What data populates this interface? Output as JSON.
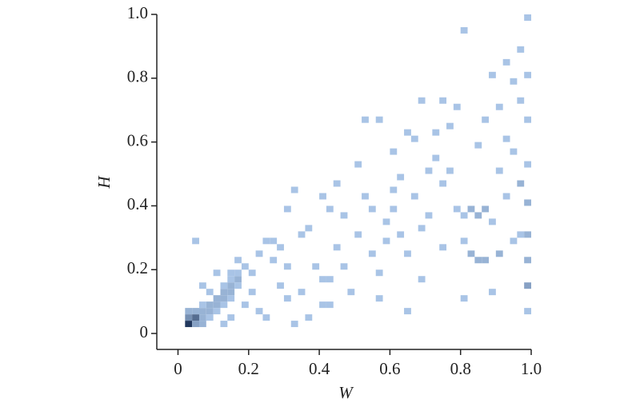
{
  "chart_data": {
    "type": "heatmap2d",
    "xlabel": "W",
    "ylabel": "H",
    "xlim": [
      -0.06,
      1.0
    ],
    "ylim": [
      -0.05,
      1.0
    ],
    "xticks": [
      0,
      0.2,
      0.4,
      0.6,
      0.8,
      {
        "value": 1,
        "label": "1.0"
      }
    ],
    "yticks": [
      0,
      0.2,
      0.4,
      0.6,
      0.8,
      {
        "value": 1,
        "label": "1.0"
      }
    ],
    "binsize": [
      0.02,
      0.02
    ],
    "cmap": [
      "#a9c4e6",
      "#22385e"
    ],
    "cells": [
      [
        0.02,
        0.02,
        9
      ],
      [
        0.04,
        0.02,
        3
      ],
      [
        0.02,
        0.04,
        4
      ],
      [
        0.04,
        0.04,
        6
      ],
      [
        0.06,
        0.02,
        2
      ],
      [
        0.02,
        0.06,
        2
      ],
      [
        0.06,
        0.04,
        2
      ],
      [
        0.04,
        0.06,
        2
      ],
      [
        0.06,
        0.06,
        2
      ],
      [
        0.08,
        0.04,
        1
      ],
      [
        0.08,
        0.06,
        2
      ],
      [
        0.06,
        0.08,
        1
      ],
      [
        0.08,
        0.08,
        2
      ],
      [
        0.1,
        0.08,
        2
      ],
      [
        0.1,
        0.06,
        1
      ],
      [
        0.12,
        0.08,
        1
      ],
      [
        0.1,
        0.1,
        2
      ],
      [
        0.12,
        0.1,
        2
      ],
      [
        0.14,
        0.1,
        1
      ],
      [
        0.12,
        0.12,
        2
      ],
      [
        0.14,
        0.12,
        2
      ],
      [
        0.12,
        0.14,
        1
      ],
      [
        0.14,
        0.14,
        2
      ],
      [
        0.16,
        0.14,
        1
      ],
      [
        0.14,
        0.16,
        1
      ],
      [
        0.16,
        0.16,
        2
      ],
      [
        0.16,
        0.18,
        1
      ],
      [
        0.14,
        0.18,
        1
      ],
      [
        0.18,
        0.2,
        1
      ],
      [
        0.16,
        0.22,
        1
      ],
      [
        0.08,
        0.12,
        1
      ],
      [
        0.06,
        0.14,
        1
      ],
      [
        0.04,
        0.28,
        1
      ],
      [
        0.1,
        0.18,
        1
      ],
      [
        0.12,
        0.02,
        1
      ],
      [
        0.14,
        0.04,
        1
      ],
      [
        0.18,
        0.08,
        1
      ],
      [
        0.2,
        0.12,
        1
      ],
      [
        0.22,
        0.06,
        1
      ],
      [
        0.24,
        0.04,
        1
      ],
      [
        0.2,
        0.18,
        1
      ],
      [
        0.22,
        0.24,
        1
      ],
      [
        0.24,
        0.28,
        1
      ],
      [
        0.26,
        0.28,
        1
      ],
      [
        0.28,
        0.26,
        1
      ],
      [
        0.3,
        0.2,
        1
      ],
      [
        0.26,
        0.22,
        1
      ],
      [
        0.28,
        0.14,
        1
      ],
      [
        0.3,
        0.1,
        1
      ],
      [
        0.32,
        0.02,
        1
      ],
      [
        0.34,
        0.12,
        1
      ],
      [
        0.3,
        0.38,
        1
      ],
      [
        0.32,
        0.44,
        1
      ],
      [
        0.34,
        0.3,
        1
      ],
      [
        0.36,
        0.32,
        1
      ],
      [
        0.38,
        0.2,
        1
      ],
      [
        0.4,
        0.16,
        1
      ],
      [
        0.42,
        0.16,
        1
      ],
      [
        0.36,
        0.04,
        1
      ],
      [
        0.4,
        0.08,
        1
      ],
      [
        0.42,
        0.08,
        1
      ],
      [
        0.44,
        0.26,
        1
      ],
      [
        0.46,
        0.36,
        1
      ],
      [
        0.4,
        0.42,
        1
      ],
      [
        0.42,
        0.38,
        1
      ],
      [
        0.44,
        0.46,
        1
      ],
      [
        0.46,
        0.2,
        1
      ],
      [
        0.48,
        0.12,
        1
      ],
      [
        0.5,
        0.3,
        1
      ],
      [
        0.5,
        0.52,
        1
      ],
      [
        0.52,
        0.42,
        1
      ],
      [
        0.54,
        0.38,
        1
      ],
      [
        0.54,
        0.24,
        1
      ],
      [
        0.56,
        0.18,
        1
      ],
      [
        0.56,
        0.1,
        1
      ],
      [
        0.58,
        0.34,
        1
      ],
      [
        0.58,
        0.28,
        1
      ],
      [
        0.6,
        0.44,
        1
      ],
      [
        0.6,
        0.38,
        1
      ],
      [
        0.62,
        0.48,
        1
      ],
      [
        0.62,
        0.3,
        1
      ],
      [
        0.64,
        0.24,
        1
      ],
      [
        0.64,
        0.06,
        1
      ],
      [
        0.66,
        0.6,
        1
      ],
      [
        0.66,
        0.42,
        1
      ],
      [
        0.68,
        0.32,
        1
      ],
      [
        0.68,
        0.16,
        1
      ],
      [
        0.7,
        0.5,
        1
      ],
      [
        0.7,
        0.36,
        1
      ],
      [
        0.72,
        0.62,
        1
      ],
      [
        0.72,
        0.54,
        1
      ],
      [
        0.74,
        0.46,
        1
      ],
      [
        0.74,
        0.26,
        1
      ],
      [
        0.76,
        0.5,
        1
      ],
      [
        0.78,
        0.7,
        1
      ],
      [
        0.78,
        0.38,
        1
      ],
      [
        0.8,
        0.36,
        1
      ],
      [
        0.8,
        0.28,
        1
      ],
      [
        0.8,
        0.1,
        1
      ],
      [
        0.82,
        0.38,
        2
      ],
      [
        0.82,
        0.24,
        2
      ],
      [
        0.84,
        0.36,
        2
      ],
      [
        0.84,
        0.22,
        2
      ],
      [
        0.84,
        0.58,
        1
      ],
      [
        0.86,
        0.38,
        2
      ],
      [
        0.86,
        0.22,
        2
      ],
      [
        0.86,
        0.66,
        1
      ],
      [
        0.88,
        0.8,
        1
      ],
      [
        0.88,
        0.34,
        1
      ],
      [
        0.88,
        0.12,
        1
      ],
      [
        0.9,
        0.7,
        1
      ],
      [
        0.9,
        0.5,
        1
      ],
      [
        0.9,
        0.24,
        2
      ],
      [
        0.92,
        0.84,
        1
      ],
      [
        0.92,
        0.6,
        1
      ],
      [
        0.92,
        0.42,
        1
      ],
      [
        0.94,
        0.78,
        1
      ],
      [
        0.94,
        0.56,
        1
      ],
      [
        0.94,
        0.28,
        1
      ],
      [
        0.96,
        0.88,
        1
      ],
      [
        0.96,
        0.72,
        1
      ],
      [
        0.96,
        0.46,
        2
      ],
      [
        0.96,
        0.3,
        1
      ],
      [
        0.98,
        0.98,
        1
      ],
      [
        0.98,
        0.8,
        1
      ],
      [
        0.98,
        0.66,
        1
      ],
      [
        0.98,
        0.52,
        1
      ],
      [
        0.98,
        0.4,
        2
      ],
      [
        0.98,
        0.3,
        2
      ],
      [
        0.98,
        0.22,
        2
      ],
      [
        0.98,
        0.14,
        3
      ],
      [
        0.98,
        0.06,
        1
      ],
      [
        0.8,
        0.94,
        1
      ],
      [
        0.52,
        0.66,
        1
      ],
      [
        0.56,
        0.66,
        1
      ],
      [
        0.6,
        0.56,
        1
      ],
      [
        0.64,
        0.62,
        1
      ],
      [
        0.68,
        0.72,
        1
      ],
      [
        0.74,
        0.72,
        1
      ],
      [
        0.76,
        0.64,
        1
      ]
    ]
  }
}
